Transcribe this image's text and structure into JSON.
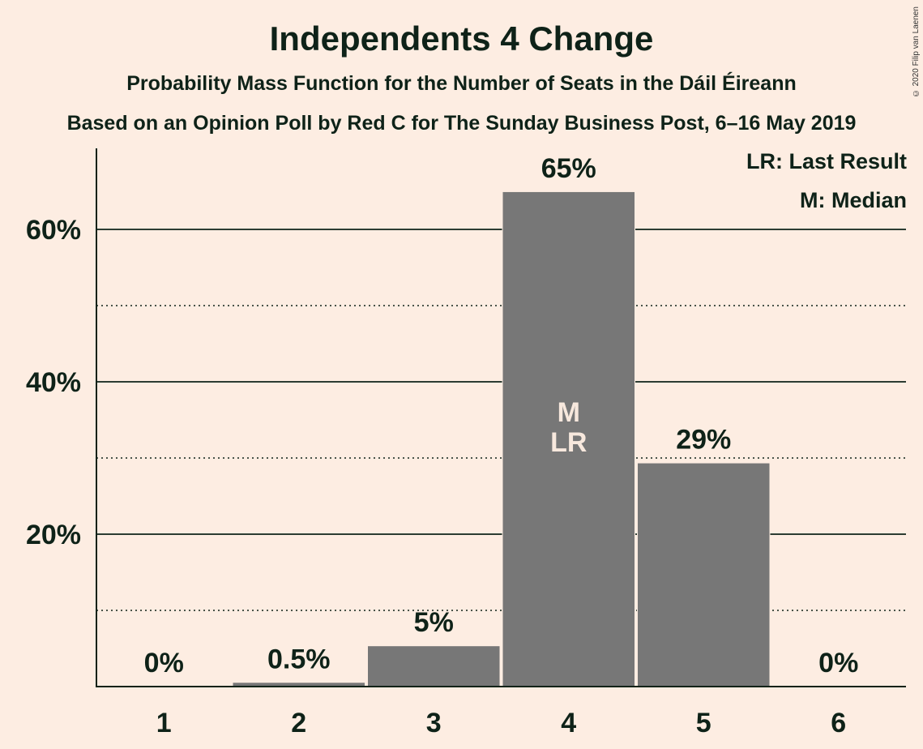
{
  "header": {
    "title": "Independents 4 Change",
    "subtitle": "Probability Mass Function for the Number of Seats in the Dáil Éireann",
    "source": "Based on an Opinion Poll by Red C for The Sunday Business Post, 6–16 May 2019",
    "copyright": "© 2020 Filip van Laenen"
  },
  "legend": {
    "last_result": "LR: Last Result",
    "median": "M: Median"
  },
  "colors": {
    "background": "#FDEDE2",
    "bar": "#777777",
    "text": "#0E2218",
    "bar_text": "#F7E8DD"
  },
  "chart_data": {
    "type": "bar",
    "title": "Independents 4 Change",
    "categories": [
      "1",
      "2",
      "3",
      "4",
      "5",
      "6"
    ],
    "values": [
      0,
      0.5,
      5.3,
      64.9,
      29.3,
      0
    ],
    "data_labels": [
      "0%",
      "0.5%",
      "5%",
      "65%",
      "29%",
      "0%"
    ],
    "bar_annotations": {
      "4": [
        "M",
        "LR"
      ]
    },
    "y_ticks": [
      20,
      40,
      60
    ],
    "y_tick_labels": [
      "20%",
      "40%",
      "60%"
    ],
    "y_minor_ticks": [
      10,
      30,
      50
    ],
    "ylim": [
      0,
      70
    ],
    "grid": true,
    "legend_placement": "top-right"
  }
}
